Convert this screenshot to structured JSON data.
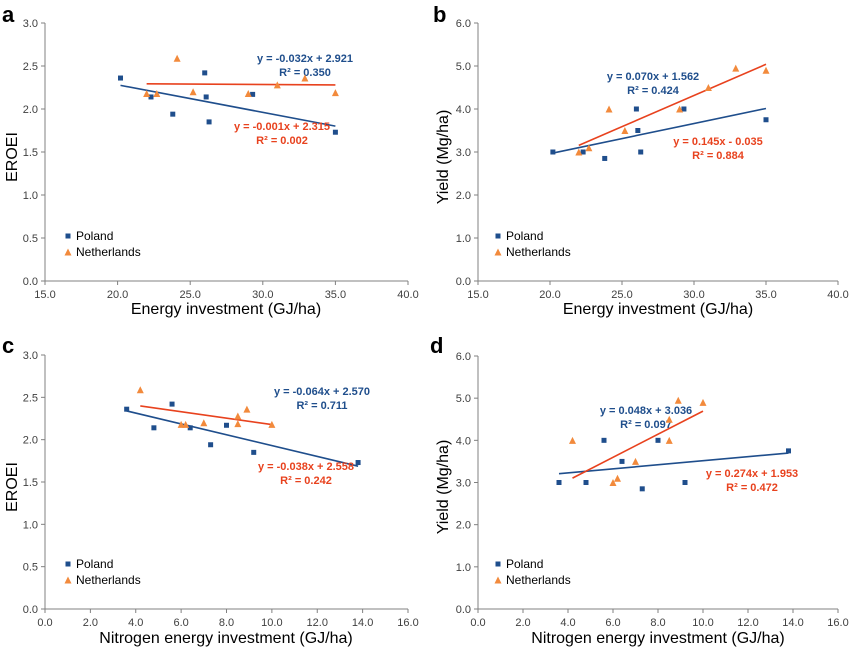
{
  "colors": {
    "poland": "#1f4e8c",
    "netherlands": "#f28a3c",
    "poland_line": "#1f4e8c",
    "netherlands_line": "#e8421e",
    "axis": "#808080"
  },
  "chart_data": [
    {
      "panel": "a",
      "type": "scatter",
      "xlabel": "Energy investment (GJ/ha)",
      "ylabel": "EROEI",
      "xlim": [
        15,
        40
      ],
      "ylim": [
        0,
        3
      ],
      "xticks": [
        "15.0",
        "20.0",
        "25.0",
        "30.0",
        "35.0",
        "40.0"
      ],
      "yticks": [
        "0.0",
        "0.5",
        "1.0",
        "1.5",
        "2.0",
        "2.5",
        "3.0"
      ],
      "legend": "bottom-left",
      "series": [
        {
          "name": "Poland",
          "marker": "square",
          "points": [
            [
              20.2,
              2.36
            ],
            [
              22.3,
              2.14
            ],
            [
              23.8,
              1.94
            ],
            [
              26.0,
              2.42
            ],
            [
              26.1,
              2.14
            ],
            [
              26.3,
              1.85
            ],
            [
              29.3,
              2.17
            ],
            [
              35.0,
              1.73
            ]
          ],
          "trend": {
            "x": [
              20.2,
              35.0
            ],
            "slope": -0.032,
            "intercept": 2.921
          },
          "equation": "y = -0.032x + 2.921",
          "r2": "R² = 0.350"
        },
        {
          "name": "Netherlands",
          "marker": "triangle",
          "points": [
            [
              22.0,
              2.18
            ],
            [
              22.7,
              2.18
            ],
            [
              24.1,
              2.59
            ],
            [
              25.2,
              2.2
            ],
            [
              29.0,
              2.18
            ],
            [
              31.0,
              2.28
            ],
            [
              32.9,
              2.36
            ],
            [
              35.0,
              2.19
            ]
          ],
          "trend": {
            "x": [
              22.0,
              35.0
            ],
            "slope": -0.001,
            "intercept": 2.315
          },
          "equation": "y = -0.001x + 2.315",
          "r2": "R² = 0.002"
        }
      ]
    },
    {
      "panel": "b",
      "type": "scatter",
      "xlabel": "Energy investment (GJ/ha)",
      "ylabel": "Yield (Mg/ha)",
      "xlim": [
        15,
        40
      ],
      "ylim": [
        0,
        6
      ],
      "xticks": [
        "15.0",
        "20.0",
        "25.0",
        "30.0",
        "35.0",
        "40.0"
      ],
      "yticks": [
        "0.0",
        "1.0",
        "2.0",
        "3.0",
        "4.0",
        "5.0",
        "6.0"
      ],
      "legend": "bottom-left",
      "series": [
        {
          "name": "Poland",
          "marker": "square",
          "points": [
            [
              20.2,
              3.0
            ],
            [
              22.3,
              3.0
            ],
            [
              23.8,
              2.85
            ],
            [
              26.0,
              4.0
            ],
            [
              26.1,
              3.5
            ],
            [
              26.3,
              3.0
            ],
            [
              29.3,
              4.0
            ],
            [
              35.0,
              3.75
            ]
          ],
          "trend": {
            "x": [
              20.2,
              35.0
            ],
            "slope": 0.07,
            "intercept": 1.562
          },
          "equation": "y = 0.070x + 1.562",
          "r2": "R² = 0.424"
        },
        {
          "name": "Netherlands",
          "marker": "triangle",
          "points": [
            [
              22.0,
              3.0
            ],
            [
              22.7,
              3.1
            ],
            [
              24.1,
              4.0
            ],
            [
              25.2,
              3.5
            ],
            [
              29.0,
              4.0
            ],
            [
              31.0,
              4.5
            ],
            [
              32.9,
              4.95
            ],
            [
              35.0,
              4.9
            ]
          ],
          "trend": {
            "x": [
              22.0,
              35.0
            ],
            "slope": 0.145,
            "intercept": -0.035
          },
          "equation": "y = 0.145x - 0.035",
          "r2": "R² = 0.884"
        }
      ]
    },
    {
      "panel": "c",
      "type": "scatter",
      "xlabel": "Nitrogen energy investment (GJ/ha)",
      "ylabel": "EROEI",
      "xlim": [
        0,
        16
      ],
      "ylim": [
        0,
        3
      ],
      "xticks": [
        "0.0",
        "2.0",
        "4.0",
        "6.0",
        "8.0",
        "10.0",
        "12.0",
        "14.0",
        "16.0"
      ],
      "yticks": [
        "0.0",
        "0.5",
        "1.0",
        "1.5",
        "2.0",
        "2.5",
        "3.0"
      ],
      "legend": "bottom-left",
      "series": [
        {
          "name": "Poland",
          "marker": "square",
          "points": [
            [
              3.6,
              2.36
            ],
            [
              4.8,
              2.14
            ],
            [
              5.6,
              2.42
            ],
            [
              6.4,
              2.14
            ],
            [
              7.3,
              1.94
            ],
            [
              8.0,
              2.17
            ],
            [
              9.2,
              1.85
            ],
            [
              13.8,
              1.73
            ]
          ],
          "trend": {
            "x": [
              3.6,
              13.8
            ],
            "slope": -0.064,
            "intercept": 2.57
          },
          "equation": "y = -0.064x + 2.570",
          "r2": "R² = 0.711"
        },
        {
          "name": "Netherlands",
          "marker": "triangle",
          "points": [
            [
              4.2,
              2.59
            ],
            [
              6.0,
              2.18
            ],
            [
              6.2,
              2.18
            ],
            [
              7.0,
              2.2
            ],
            [
              8.5,
              2.19
            ],
            [
              8.5,
              2.28
            ],
            [
              8.9,
              2.36
            ],
            [
              10.0,
              2.18
            ]
          ],
          "trend": {
            "x": [
              4.2,
              10.0
            ],
            "slope": -0.038,
            "intercept": 2.558
          },
          "equation": "y = -0.038x + 2.558",
          "r2": "R² = 0.242"
        }
      ]
    },
    {
      "panel": "d",
      "type": "scatter",
      "xlabel": "Nitrogen energy investment (GJ/ha)",
      "ylabel": "Yield (Mg/ha)",
      "xlim": [
        0,
        16
      ],
      "ylim": [
        0,
        6
      ],
      "xticks": [
        "0.0",
        "2.0",
        "4.0",
        "6.0",
        "8.0",
        "10.0",
        "12.0",
        "14.0",
        "16.0"
      ],
      "yticks": [
        "0.0",
        "1.0",
        "2.0",
        "3.0",
        "4.0",
        "5.0",
        "6.0"
      ],
      "legend": "bottom-left",
      "series": [
        {
          "name": "Poland",
          "marker": "square",
          "points": [
            [
              3.6,
              3.0
            ],
            [
              4.8,
              3.0
            ],
            [
              5.6,
              4.0
            ],
            [
              6.4,
              3.5
            ],
            [
              7.3,
              2.85
            ],
            [
              8.0,
              4.0
            ],
            [
              9.2,
              3.0
            ],
            [
              13.8,
              3.75
            ]
          ],
          "trend": {
            "x": [
              3.6,
              13.8
            ],
            "slope": 0.048,
            "intercept": 3.036
          },
          "equation": "y = 0.048x + 3.036",
          "r2": "R² = 0.097"
        },
        {
          "name": "Netherlands",
          "marker": "triangle",
          "points": [
            [
              4.2,
              4.0
            ],
            [
              6.0,
              3.0
            ],
            [
              6.2,
              3.1
            ],
            [
              7.0,
              3.5
            ],
            [
              8.5,
              4.0
            ],
            [
              8.5,
              4.5
            ],
            [
              8.9,
              4.95
            ],
            [
              10.0,
              4.9
            ]
          ],
          "trend": {
            "x": [
              4.2,
              10.0
            ],
            "slope": 0.274,
            "intercept": 1.953
          },
          "equation": "y = 0.274x + 1.953",
          "r2": "R² = 0.472"
        }
      ]
    }
  ]
}
